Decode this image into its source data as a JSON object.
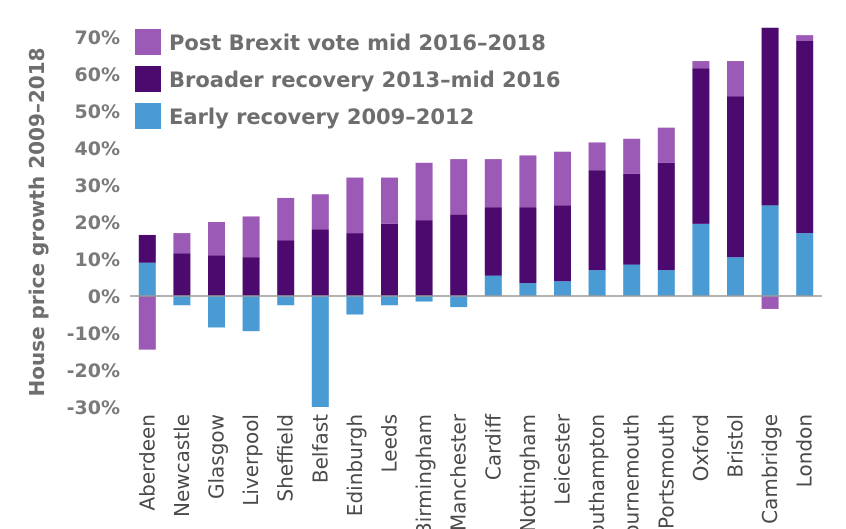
{
  "chart_data": {
    "type": "bar",
    "stacked": true,
    "ylabel": "House price growth 2009–2018",
    "ylim": [
      -30,
      70
    ],
    "yticks": [
      "70%",
      "60%",
      "50%",
      "40%",
      "30%",
      "20%",
      "10%",
      "0%",
      "-10%",
      "-20%",
      "-30%"
    ],
    "ytick_values": [
      70,
      60,
      50,
      40,
      30,
      20,
      10,
      0,
      -10,
      -20,
      -30
    ],
    "grid": false,
    "legend_position": "top-left",
    "categories": [
      "Aberdeen",
      "Newcastle",
      "Glasgow",
      "Liverpool",
      "Sheffield",
      "Belfast",
      "Edinburgh",
      "Leeds",
      "Birmingham",
      "Manchester",
      "Cardiff",
      "Nottingham",
      "Leicester",
      "Southampton",
      "Bournemouth",
      "Portsmouth",
      "Oxford",
      "Bristol",
      "Cambridge",
      "London"
    ],
    "series": [
      {
        "name": "Early recovery 2009–2012",
        "color": "#4a9ad4",
        "values": [
          9,
          -2.5,
          -8.5,
          -9.5,
          -2.5,
          -30,
          -5,
          -2.5,
          -1.5,
          -3,
          5.5,
          3.5,
          4,
          7,
          8.5,
          7,
          19.5,
          10.5,
          24.5,
          17
        ]
      },
      {
        "name": "Broader recovery 2013–mid 2016",
        "color": "#4d0a6e",
        "values": [
          7.5,
          11.5,
          11,
          10.5,
          15,
          18,
          17,
          19.5,
          20.5,
          22,
          18.5,
          20.5,
          20.5,
          27,
          24.5,
          29,
          42,
          43.5,
          48,
          52
        ]
      },
      {
        "name": "Post Brexit vote mid 2016–2018",
        "color": "#9b5ab5",
        "values": [
          -14.5,
          5.5,
          9,
          11,
          11.5,
          9.5,
          15,
          12.5,
          15.5,
          15,
          13,
          14,
          14.5,
          7.5,
          9.5,
          9.5,
          2,
          9.5,
          -3.5,
          1.5
        ]
      }
    ],
    "legend_order": [
      2,
      1,
      0
    ]
  }
}
